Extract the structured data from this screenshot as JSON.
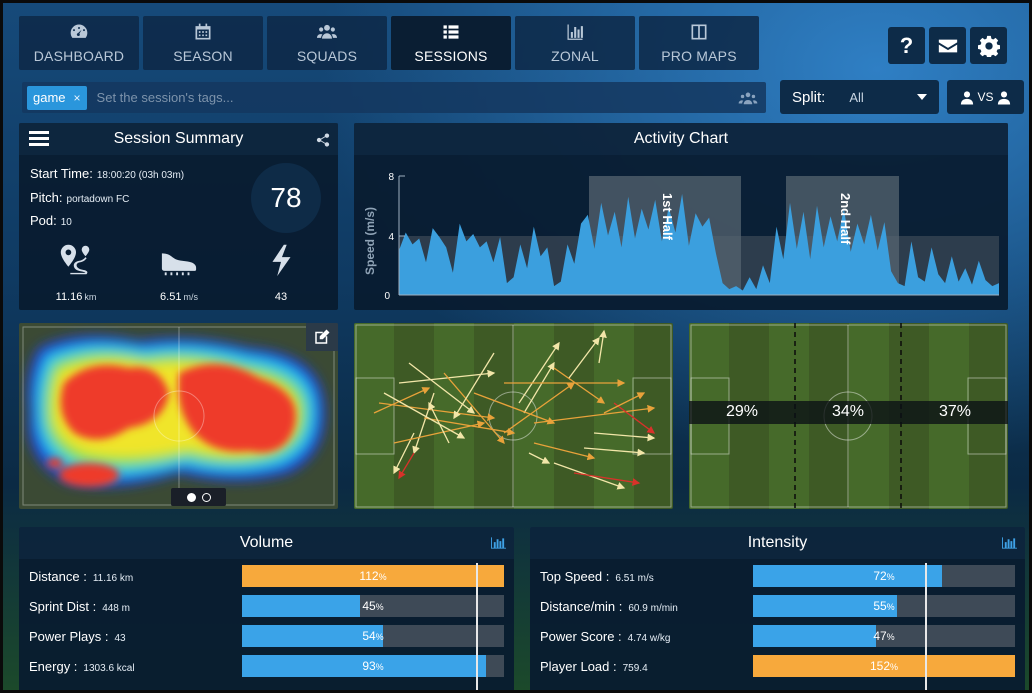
{
  "nav": {
    "tabs": [
      {
        "label": "DASHBOARD",
        "icon": "dashboard-gauge-icon"
      },
      {
        "label": "SEASON",
        "icon": "calendar-icon"
      },
      {
        "label": "SQUADS",
        "icon": "users-icon"
      },
      {
        "label": "SESSIONS",
        "icon": "list-icon",
        "active": true
      },
      {
        "label": "ZONAL",
        "icon": "bar-chart-icon"
      },
      {
        "label": "PRO MAPS",
        "icon": "columns-icon"
      }
    ],
    "help_label": "?",
    "mail_icon": "envelope-icon",
    "settings_icon": "gear-icon"
  },
  "tags": {
    "chip": "game",
    "chip_remove": "×",
    "placeholder": "Set the session's tags..."
  },
  "split": {
    "label": "Split:",
    "value": "All"
  },
  "vs": {
    "label": "VS"
  },
  "summary": {
    "title": "Session Summary",
    "start_time_label": "Start Time:",
    "start_time": "18:00:20 (03h 03m)",
    "pitch_label": "Pitch:",
    "pitch": "portadown FC",
    "pod_label": "Pod:",
    "pod": "10",
    "score": "78",
    "stats": [
      {
        "icon": "route-pin-icon",
        "value": "11.16",
        "unit": "km"
      },
      {
        "icon": "boot-icon",
        "value": "6.51",
        "unit": "m/s"
      },
      {
        "icon": "lightning-icon",
        "value": "43",
        "unit": ""
      }
    ]
  },
  "activity": {
    "title": "Activity Chart",
    "ylabel": "Speed (m/s)",
    "yticks": [
      "0",
      "4",
      "8"
    ],
    "halves": [
      "1st Half",
      "2nd Half"
    ]
  },
  "chart_data": {
    "type": "area",
    "title": "Activity Chart",
    "ylabel": "Speed (m/s)",
    "ylim": [
      0,
      8
    ],
    "yticks": [
      0,
      4,
      8
    ],
    "series": [
      {
        "values": [
          3.0,
          4.2,
          3.4,
          3.8,
          2.2,
          4.5,
          3.9,
          3.2,
          1.5,
          4.8,
          3.6,
          4.1,
          3.2,
          3.6,
          2.2,
          3.9,
          0.8,
          1.2,
          3.4,
          1.8,
          4.6,
          2.6,
          3.2,
          0.6,
          0.9,
          3.4,
          2.1,
          4.8,
          5.4,
          3.1,
          6.2,
          4.0,
          5.6,
          3.2,
          6.6,
          3.8,
          5.8,
          4.4,
          6.4,
          3.6,
          5.9,
          4.2,
          6.8,
          3.3,
          5.5,
          4.6,
          5.2,
          2.8,
          0.8,
          0.4,
          0.6,
          0.3,
          1.2,
          0.4,
          2.0,
          0.8,
          4.6,
          2.4,
          6.2,
          3.1,
          5.6,
          2.4,
          6.0,
          3.2,
          5.3,
          3.6,
          5.8,
          2.9,
          4.8,
          3.4,
          5.4,
          3.0,
          4.9,
          1.6,
          0.8,
          0.6,
          3.6,
          1.2,
          0.9,
          3.2,
          1.4,
          0.8,
          2.6,
          0.9,
          1.8,
          0.7,
          2.3,
          1.0,
          0.6,
          0.8
        ]
      }
    ]
  },
  "zones": {
    "values": [
      "29%",
      "34%",
      "37%"
    ]
  },
  "volume": {
    "title": "Volume",
    "rows": [
      {
        "label": "Distance :",
        "value": "11.16 km",
        "pct": 112,
        "pct_text": "112",
        "color": "#f7a93c"
      },
      {
        "label": "Sprint Dist :",
        "value": "448 m",
        "pct": 45,
        "pct_text": "45",
        "color": "#3aa3e8"
      },
      {
        "label": "Power Plays :",
        "value": "43",
        "pct": 54,
        "pct_text": "54",
        "color": "#3aa3e8"
      },
      {
        "label": "Energy :",
        "value": "1303.6 kcal",
        "pct": 93,
        "pct_text": "93",
        "color": "#3aa3e8"
      }
    ]
  },
  "intensity": {
    "title": "Intensity",
    "rows": [
      {
        "label": "Top Speed :",
        "value": "6.51 m/s",
        "pct": 72,
        "pct_text": "72",
        "color": "#3aa3e8"
      },
      {
        "label": "Distance/min :",
        "value": "60.9 m/min",
        "pct": 55,
        "pct_text": "55",
        "color": "#3aa3e8"
      },
      {
        "label": "Power Score :",
        "value": "4.74 w/kg",
        "pct": 47,
        "pct_text": "47",
        "color": "#3aa3e8"
      },
      {
        "label": "Player Load :",
        "value": "759.4",
        "pct": 152,
        "pct_text": "152",
        "color": "#f7a93c"
      }
    ]
  },
  "pct_symbol": "%"
}
